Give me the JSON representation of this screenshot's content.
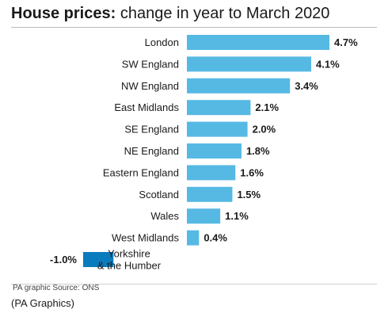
{
  "title_bold": "House prices:",
  "title_rest": " change in year to March 2020",
  "source": "PA graphic Source: ONS",
  "credit": "(PA Graphics)",
  "chart_data": {
    "type": "bar",
    "orientation": "horizontal",
    "categories": [
      "London",
      "SW England",
      "NW England",
      "East Midlands",
      "SE England",
      "NE England",
      "Eastern England",
      "Scotland",
      "Wales",
      "West Midlands",
      "Yorkshire & the Humber"
    ],
    "category_lines": [
      [
        "London"
      ],
      [
        "SW England"
      ],
      [
        "NW England"
      ],
      [
        "East Midlands"
      ],
      [
        "SE England"
      ],
      [
        "NE England"
      ],
      [
        "Eastern England"
      ],
      [
        "Scotland"
      ],
      [
        "Wales"
      ],
      [
        "West Midlands"
      ],
      [
        "Yorkshire",
        "& the Humber"
      ]
    ],
    "values": [
      4.7,
      4.1,
      3.4,
      2.1,
      2.0,
      1.8,
      1.6,
      1.5,
      1.1,
      0.4,
      -1.0
    ],
    "value_labels": [
      "4.7%",
      "4.1%",
      "3.4%",
      "2.1%",
      "2.0%",
      "1.8%",
      "1.6%",
      "1.5%",
      "1.1%",
      "0.4%",
      "-1.0%"
    ],
    "unit": "%",
    "colors": {
      "positive": "#56b9e4",
      "negative": "#0a7bbd"
    }
  }
}
